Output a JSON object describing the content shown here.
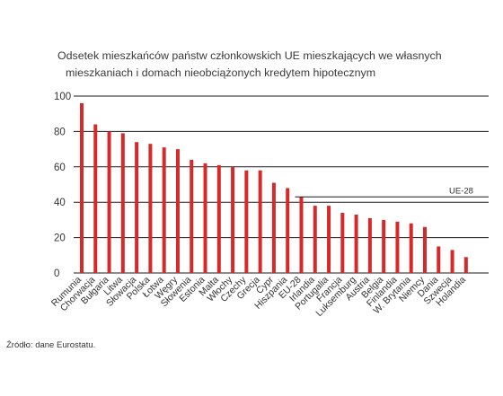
{
  "title_line1": "Odsetek mieszkańców państw członkowskich UE mieszkających we własnych",
  "title_line2": "mieszkaniach i domach nieobciążonych kredytem hipotecznym",
  "source": "Źródło: dane Eurostatu.",
  "colors": {
    "bar": "#d62a2a",
    "grid": "#1a1a1a",
    "text": "#333333"
  },
  "chart_data": {
    "type": "bar",
    "title": "Odsetek mieszkańców państw członkowskich UE mieszkających we własnych mieszkaniach i domach nieobciążonych kredytem hipotecznym",
    "categories": [
      "Rumunia",
      "Chorwacja",
      "Bułgaria",
      "Litwa",
      "Słowacja",
      "Polska",
      "Łotwa",
      "Węgry",
      "Słowenia",
      "Estonia",
      "Malta",
      "Włochy",
      "Czechy",
      "Grecja",
      "Cypr",
      "Hiszpania",
      "EU-28",
      "Irlandia",
      "Portugalia",
      "Francja",
      "Luksemburg",
      "Austria",
      "Belgia",
      "Finlandia",
      "W. Brytania",
      "Niemcy",
      "Dania",
      "Szwecja",
      "Holandia"
    ],
    "values": [
      96,
      84,
      80,
      79,
      74,
      73,
      71,
      70,
      64,
      62,
      61,
      60,
      58,
      58,
      51,
      48,
      43,
      38,
      38,
      34,
      33,
      31,
      30,
      29,
      28,
      26,
      15,
      13,
      9
    ],
    "ylim": [
      0,
      100
    ],
    "yticks": [
      0,
      20,
      40,
      60,
      80,
      100
    ],
    "reference_line": {
      "label": "UE-28",
      "value": 43
    },
    "grid": true,
    "xlabel": "",
    "ylabel": ""
  }
}
